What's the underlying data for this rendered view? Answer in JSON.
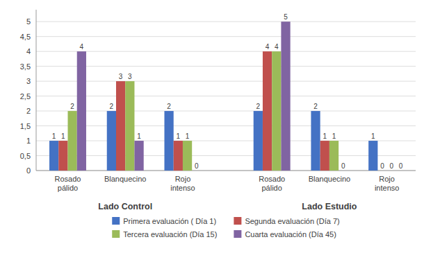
{
  "chart_data": {
    "type": "bar",
    "categories": [
      "Rosado\npálido",
      "Blanquecino",
      "Rojo\nintenso",
      "Rosado\npálido",
      "Blanquecino",
      "Rojo\nintenso"
    ],
    "series": [
      {
        "name": "Primera evaluación ( Día 1)",
        "color": "#4472C4",
        "values": [
          1,
          2,
          2,
          2,
          2,
          1
        ]
      },
      {
        "name": "Segunda evaluación (Día 7)",
        "color": "#C0504D",
        "values": [
          1,
          3,
          1,
          4,
          1,
          0
        ]
      },
      {
        "name": "Tercera evaluación (Día 15)",
        "color": "#9BBB59",
        "values": [
          2,
          3,
          1,
          4,
          1,
          0
        ]
      },
      {
        "name": "Cuarta evaluación (Día 45)",
        "color": "#8064A2",
        "values": [
          4,
          1,
          0,
          5,
          0,
          0
        ]
      }
    ],
    "annotations": [
      "Lado Control",
      "Lado Estudio"
    ],
    "ylim": [
      0,
      5.4
    ],
    "yticks": [
      0,
      {
        "value": 0.5,
        "label": "0,5"
      },
      1,
      {
        "value": 1.5,
        "label": "1,5"
      },
      2,
      {
        "value": 2.5,
        "label": "2,5"
      },
      3,
      {
        "value": 3.5,
        "label": "3,5"
      },
      4,
      {
        "value": 4.5,
        "label": "4,5"
      },
      5
    ],
    "grid": true,
    "data_labels": true,
    "legend": "bottom"
  }
}
